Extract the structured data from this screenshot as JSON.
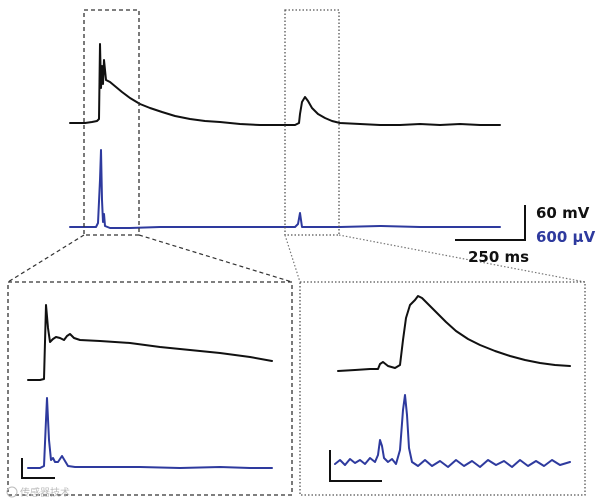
{
  "colors": {
    "voltage_trace": "#111111",
    "current_trace": "#2e3a9e",
    "box_outline": "#333333"
  },
  "scale_bars": {
    "voltage_label": "60 mV",
    "current_label": "600 μV",
    "time_label": "250 ms"
  },
  "watermark": "传感器技术"
}
